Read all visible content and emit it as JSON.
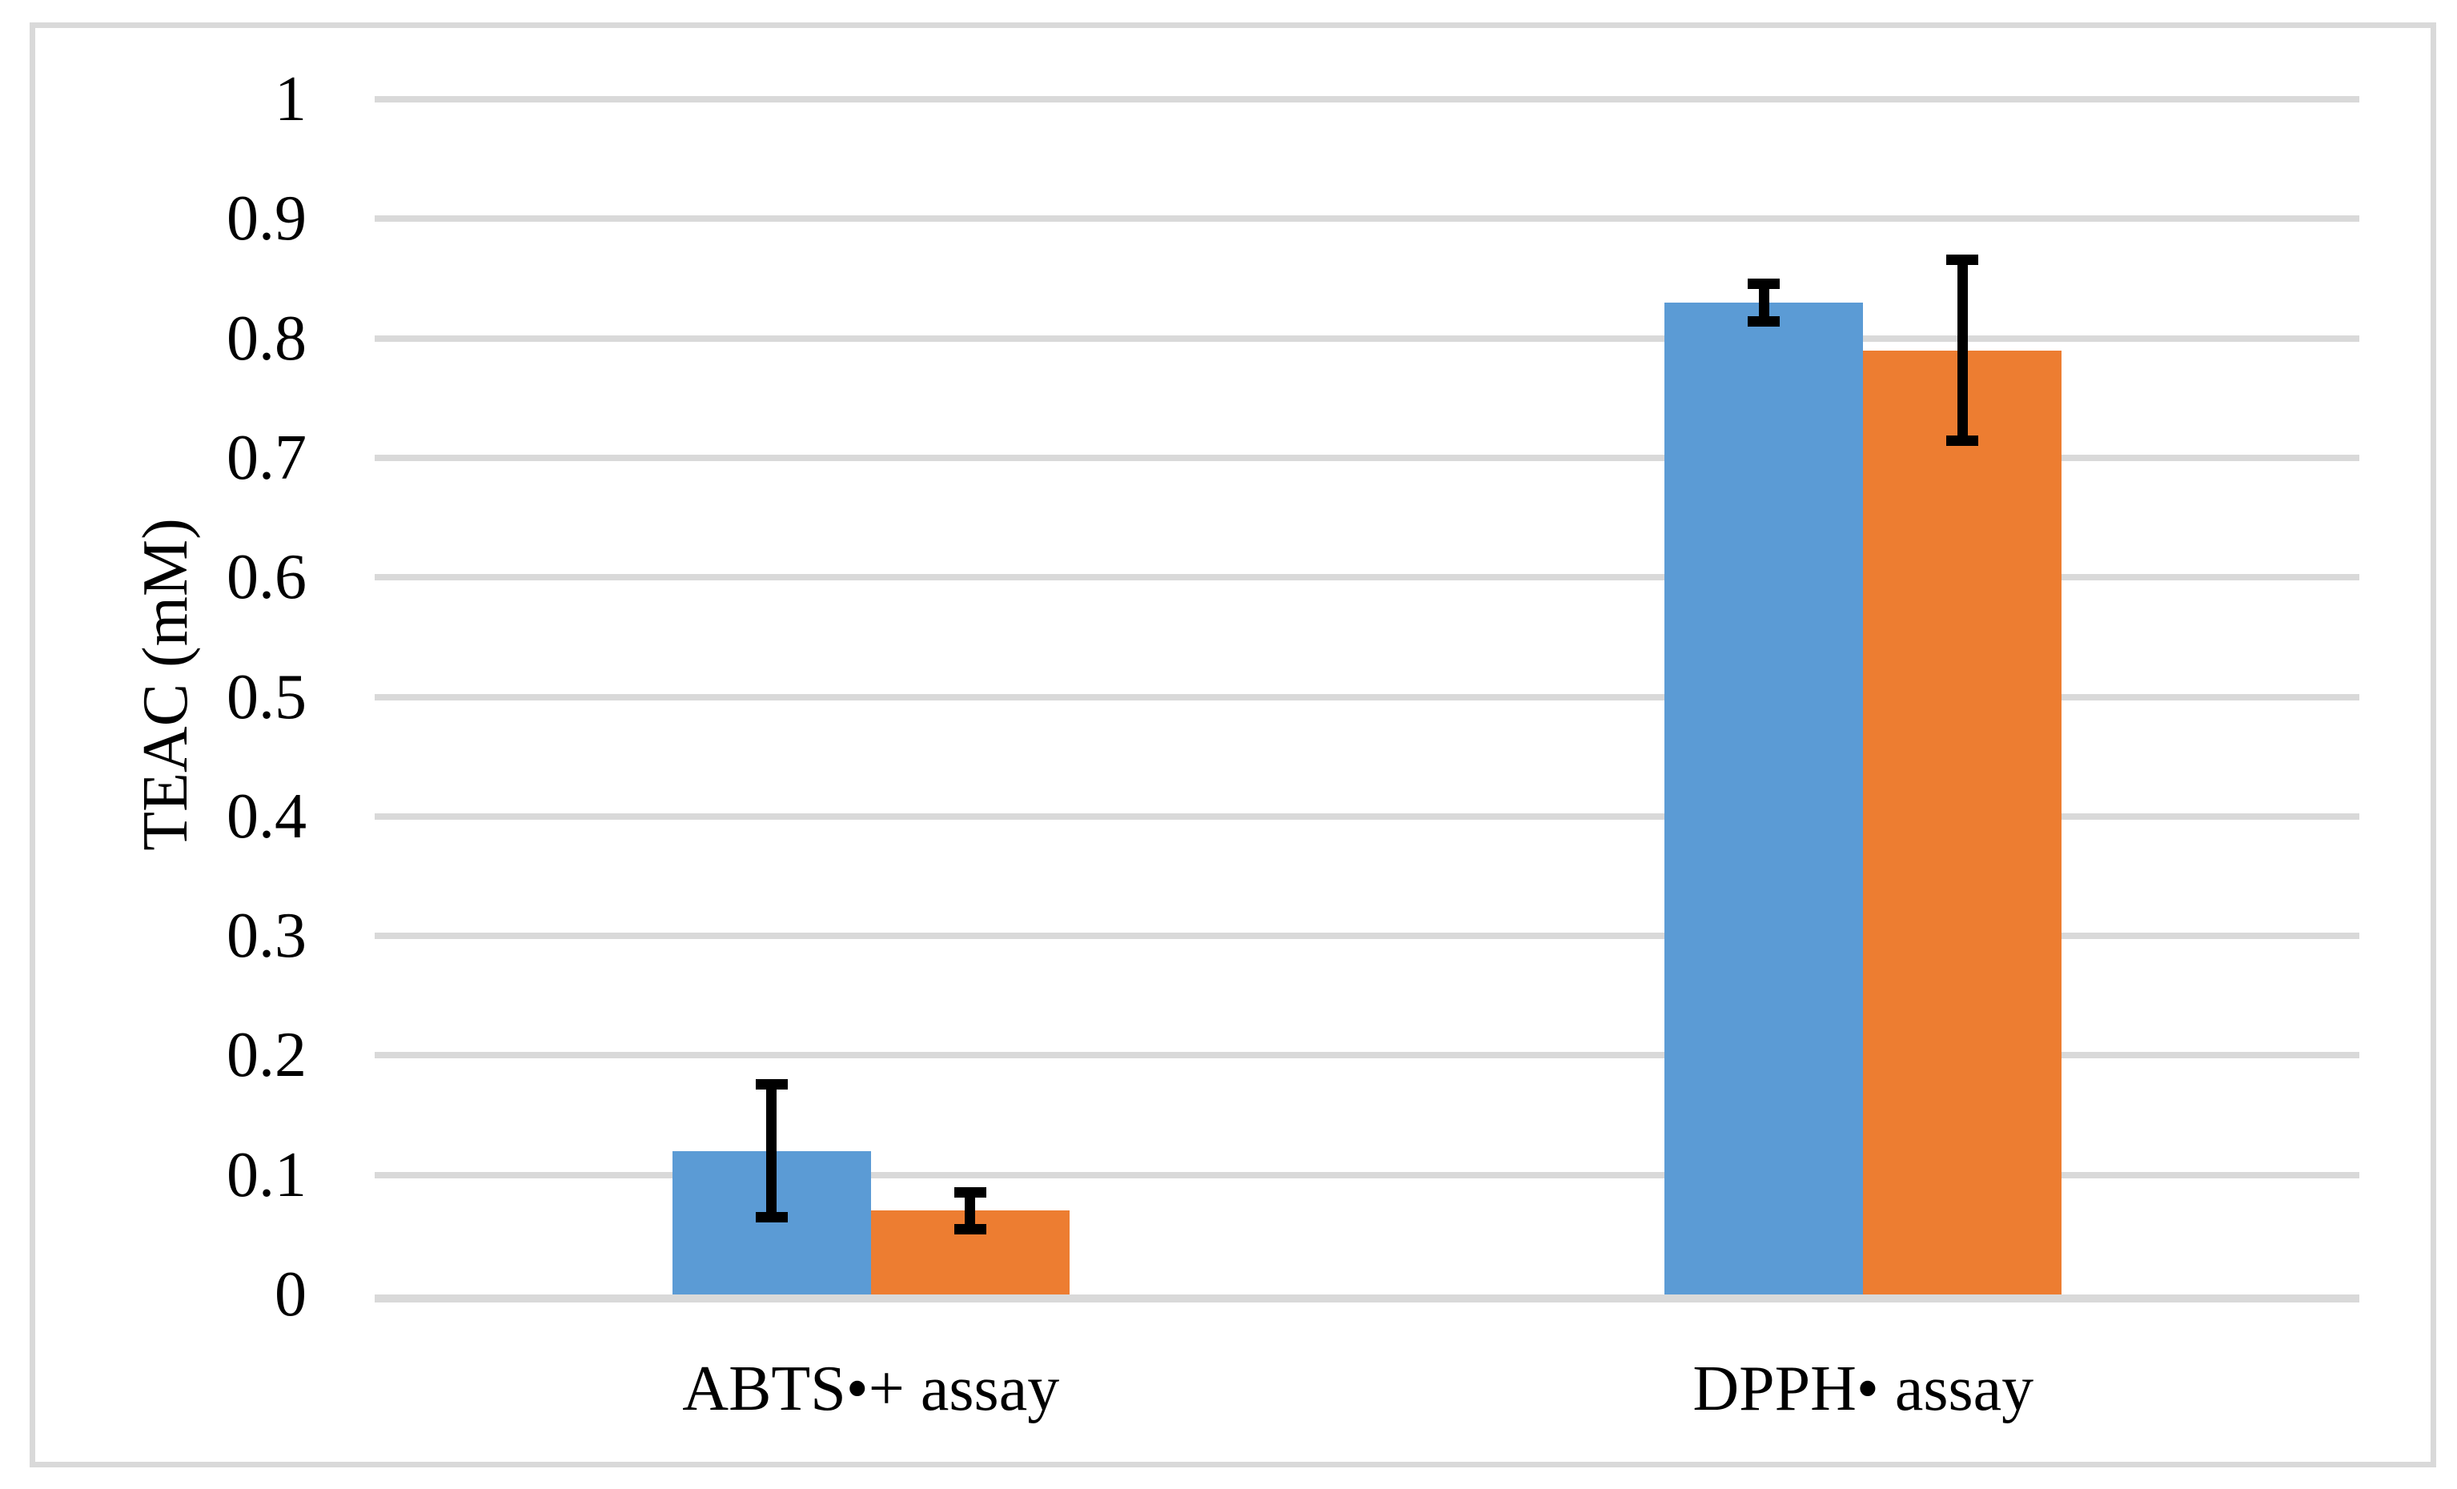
{
  "chart_data": {
    "type": "bar",
    "title": "",
    "xlabel": "",
    "ylabel": "TEAC (mM)",
    "ylim": [
      0,
      1
    ],
    "ytick_step": 0.1,
    "ytick_labels": [
      "0",
      "0.1",
      "0.2",
      "0.3",
      "0.4",
      "0.5",
      "0.6",
      "0.7",
      "0.8",
      "0.9",
      "1"
    ],
    "categories": [
      "ABTS•+ assay",
      "DPPH• assay"
    ],
    "series": [
      {
        "name": "series-1",
        "color": "#5B9BD5",
        "values": [
          0.12,
          0.83
        ],
        "errors": [
          0.06,
          0.02
        ]
      },
      {
        "name": "series-2",
        "color": "#ED7D31",
        "values": [
          0.07,
          0.79
        ],
        "errors": [
          0.02,
          0.08
        ]
      }
    ],
    "grid": true,
    "legend": false,
    "error_bar_color": "#000000",
    "gridline_color": "#D9D9D9",
    "axis_line_color": "#D9D9D9",
    "border_color": "#D9D9D9",
    "background_color": "#FFFFFF",
    "text_color": "#000000"
  }
}
